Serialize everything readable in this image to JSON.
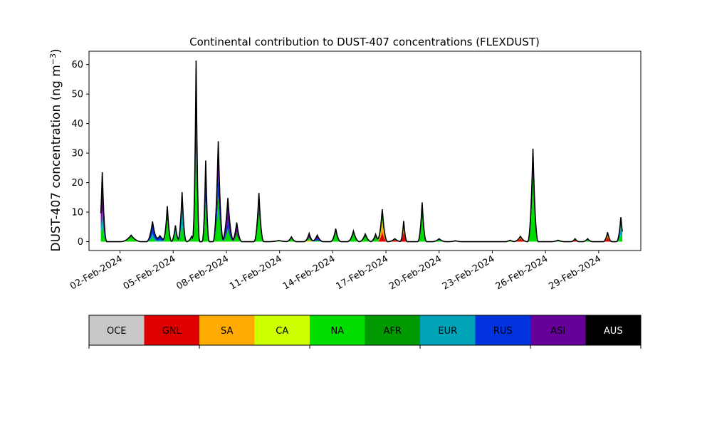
{
  "chart_data": {
    "type": "area",
    "stacked": true,
    "title": "Continental contribution to DUST-407 concentrations (FLEXDUST)",
    "ylabel_text": "DUST-407 concentration (ng m",
    "ylabel_unit_exp": "−3",
    "ylabel_close": ")",
    "xlabel": "",
    "ylim": [
      -3,
      64.5
    ],
    "xlim": [
      "2024-01-31T06:00",
      "2024-03-02T09:00"
    ],
    "yticks": [
      0,
      10,
      20,
      30,
      40,
      50,
      60
    ],
    "xticks": [
      "2024-02-02",
      "2024-02-05",
      "2024-02-08",
      "2024-02-11",
      "2024-02-14",
      "2024-02-17",
      "2024-02-20",
      "2024-02-23",
      "2024-02-26",
      "2024-02-29"
    ],
    "xtick_labels": [
      "02-Feb-2024",
      "05-Feb-2024",
      "08-Feb-2024",
      "11-Feb-2024",
      "14-Feb-2024",
      "17-Feb-2024",
      "20-Feb-2024",
      "23-Feb-2024",
      "26-Feb-2024",
      "29-Feb-2024"
    ],
    "grid": false,
    "legend_placement": "bottom colorbar",
    "series": [
      {
        "name": "OCE",
        "color": "#c8c8c8",
        "text_color": "#000000"
      },
      {
        "name": "GNL",
        "color": "#e00000",
        "text_color": "#000000"
      },
      {
        "name": "SA",
        "color": "#ffaa00",
        "text_color": "#000000"
      },
      {
        "name": "CA",
        "color": "#ccff00",
        "text_color": "#000000"
      },
      {
        "name": "NA",
        "color": "#00dd00",
        "text_color": "#000000"
      },
      {
        "name": "AFR",
        "color": "#009900",
        "text_color": "#000000"
      },
      {
        "name": "EUR",
        "color": "#00a3b8",
        "text_color": "#000000"
      },
      {
        "name": "RUS",
        "color": "#0033dd",
        "text_color": "#000000"
      },
      {
        "name": "ASI",
        "color": "#660099",
        "text_color": "#000000"
      },
      {
        "name": "AUS",
        "color": "#000000",
        "text_color": "#ffffff"
      }
    ],
    "total_peaks": [
      {
        "t": "2024-02-01T00:00",
        "v": 23.5,
        "w": 0.25,
        "mix": {
          "ASI": 0.55,
          "NA": 0.25,
          "EUR": 0.2
        }
      },
      {
        "t": "2024-02-02T15:00",
        "v": 2.2,
        "w": 0.6,
        "mix": {
          "NA": 0.7,
          "AFR": 0.3
        }
      },
      {
        "t": "2024-02-03T20:00",
        "v": 6.8,
        "w": 0.35,
        "mix": {
          "RUS": 0.6,
          "NA": 0.2,
          "EUR": 0.2
        }
      },
      {
        "t": "2024-02-04T06:00",
        "v": 2.0,
        "w": 0.5,
        "mix": {
          "RUS": 0.7,
          "EUR": 0.3
        }
      },
      {
        "t": "2024-02-04T16:00",
        "v": 12.0,
        "w": 0.25,
        "mix": {
          "NA": 0.6,
          "AFR": 0.2,
          "EUR": 0.2
        }
      },
      {
        "t": "2024-02-05T03:00",
        "v": 5.5,
        "w": 0.25,
        "mix": {
          "NA": 0.5,
          "EUR": 0.3,
          "RUS": 0.2
        }
      },
      {
        "t": "2024-02-05T12:00",
        "v": 16.8,
        "w": 0.25,
        "mix": {
          "EUR": 0.45,
          "NA": 0.35,
          "ASI": 0.2
        }
      },
      {
        "t": "2024-02-06T01:00",
        "v": 1.8,
        "w": 0.3,
        "mix": {
          "NA": 0.7,
          "EUR": 0.3
        }
      },
      {
        "t": "2024-02-06T07:00",
        "v": 61.3,
        "w": 0.2,
        "mix": {
          "NA": 0.5,
          "AFR": 0.15,
          "ASI": 0.25,
          "RUS": 0.1
        }
      },
      {
        "t": "2024-02-06T20:00",
        "v": 27.5,
        "w": 0.2,
        "mix": {
          "NA": 0.5,
          "ASI": 0.3,
          "RUS": 0.2
        }
      },
      {
        "t": "2024-02-07T13:00",
        "v": 34.0,
        "w": 0.3,
        "mix": {
          "NA": 0.45,
          "ASI": 0.35,
          "RUS": 0.2
        }
      },
      {
        "t": "2024-02-08T02:00",
        "v": 14.8,
        "w": 0.35,
        "mix": {
          "ASI": 0.5,
          "NA": 0.3,
          "RUS": 0.2
        }
      },
      {
        "t": "2024-02-08T14:00",
        "v": 6.5,
        "w": 0.3,
        "mix": {
          "ASI": 0.5,
          "NA": 0.3,
          "AFR": 0.2
        }
      },
      {
        "t": "2024-02-09T20:00",
        "v": 16.5,
        "w": 0.28,
        "mix": {
          "NA": 0.55,
          "RUS": 0.25,
          "AFR": 0.2
        }
      },
      {
        "t": "2024-02-10T23:00",
        "v": 0.4,
        "w": 0.6,
        "mix": {
          "NA": 1.0
        }
      },
      {
        "t": "2024-02-11T16:00",
        "v": 1.6,
        "w": 0.3,
        "mix": {
          "NA": 0.7,
          "AFR": 0.3
        }
      },
      {
        "t": "2024-02-12T16:00",
        "v": 2.8,
        "w": 0.3,
        "mix": {
          "ASI": 0.5,
          "NA": 0.3,
          "SA": 0.2
        }
      },
      {
        "t": "2024-02-13T03:00",
        "v": 2.2,
        "w": 0.35,
        "mix": {
          "ASI": 0.5,
          "RUS": 0.3,
          "NA": 0.2
        }
      },
      {
        "t": "2024-02-14T04:00",
        "v": 4.4,
        "w": 0.3,
        "mix": {
          "NA": 0.6,
          "AFR": 0.2,
          "EUR": 0.2
        }
      },
      {
        "t": "2024-02-15T04:00",
        "v": 3.6,
        "w": 0.35,
        "mix": {
          "NA": 0.6,
          "AFR": 0.4
        }
      },
      {
        "t": "2024-02-15T20:00",
        "v": 2.6,
        "w": 0.35,
        "mix": {
          "NA": 0.6,
          "AFR": 0.4
        }
      },
      {
        "t": "2024-02-16T10:00",
        "v": 2.5,
        "w": 0.3,
        "mix": {
          "AFR": 0.5,
          "NA": 0.5
        }
      },
      {
        "t": "2024-02-16T19:00",
        "v": 11.0,
        "w": 0.3,
        "mix": {
          "SA": 0.35,
          "GNL": 0.3,
          "NA": 0.35
        }
      },
      {
        "t": "2024-02-17T12:00",
        "v": 1.0,
        "w": 0.4,
        "mix": {
          "GNL": 0.6,
          "NA": 0.4
        }
      },
      {
        "t": "2024-02-18T00:00",
        "v": 7.0,
        "w": 0.2,
        "mix": {
          "GNL": 0.5,
          "SA": 0.2,
          "NA": 0.3
        }
      },
      {
        "t": "2024-02-19T01:00",
        "v": 13.3,
        "w": 0.25,
        "mix": {
          "NA": 0.6,
          "AFR": 0.2,
          "EUR": 0.2
        }
      },
      {
        "t": "2024-02-20T00:00",
        "v": 1.0,
        "w": 0.4,
        "mix": {
          "EUR": 0.5,
          "NA": 0.5
        }
      },
      {
        "t": "2024-02-20T22:00",
        "v": 0.3,
        "w": 0.4,
        "mix": {
          "NA": 1.0
        }
      },
      {
        "t": "2024-02-24T00:00",
        "v": 0.5,
        "w": 0.3,
        "mix": {
          "NA": 1.0
        }
      },
      {
        "t": "2024-02-24T14:00",
        "v": 1.8,
        "w": 0.4,
        "mix": {
          "GNL": 0.6,
          "SA": 0.4
        }
      },
      {
        "t": "2024-02-25T07:00",
        "v": 31.5,
        "w": 0.3,
        "mix": {
          "NA": 0.6,
          "AFR": 0.15,
          "ASI": 0.25
        }
      },
      {
        "t": "2024-02-26T17:00",
        "v": 0.5,
        "w": 0.4,
        "mix": {
          "NA": 1.0
        }
      },
      {
        "t": "2024-02-27T16:00",
        "v": 1.0,
        "w": 0.25,
        "mix": {
          "GNL": 0.6,
          "NA": 0.4
        }
      },
      {
        "t": "2024-02-28T09:00",
        "v": 1.0,
        "w": 0.3,
        "mix": {
          "EUR": 0.5,
          "NA": 0.5
        }
      },
      {
        "t": "2024-02-29T12:00",
        "v": 3.2,
        "w": 0.25,
        "mix": {
          "GNL": 0.5,
          "SA": 0.3,
          "NA": 0.2
        }
      },
      {
        "t": "2024-03-01T06:00",
        "v": 8.3,
        "w": 0.25,
        "mix": {
          "EUR": 0.5,
          "RUS": 0.2,
          "NA": 0.3
        }
      }
    ],
    "series_range": [
      "2024-01-31T22:00",
      "2024-03-01T08:00"
    ]
  }
}
